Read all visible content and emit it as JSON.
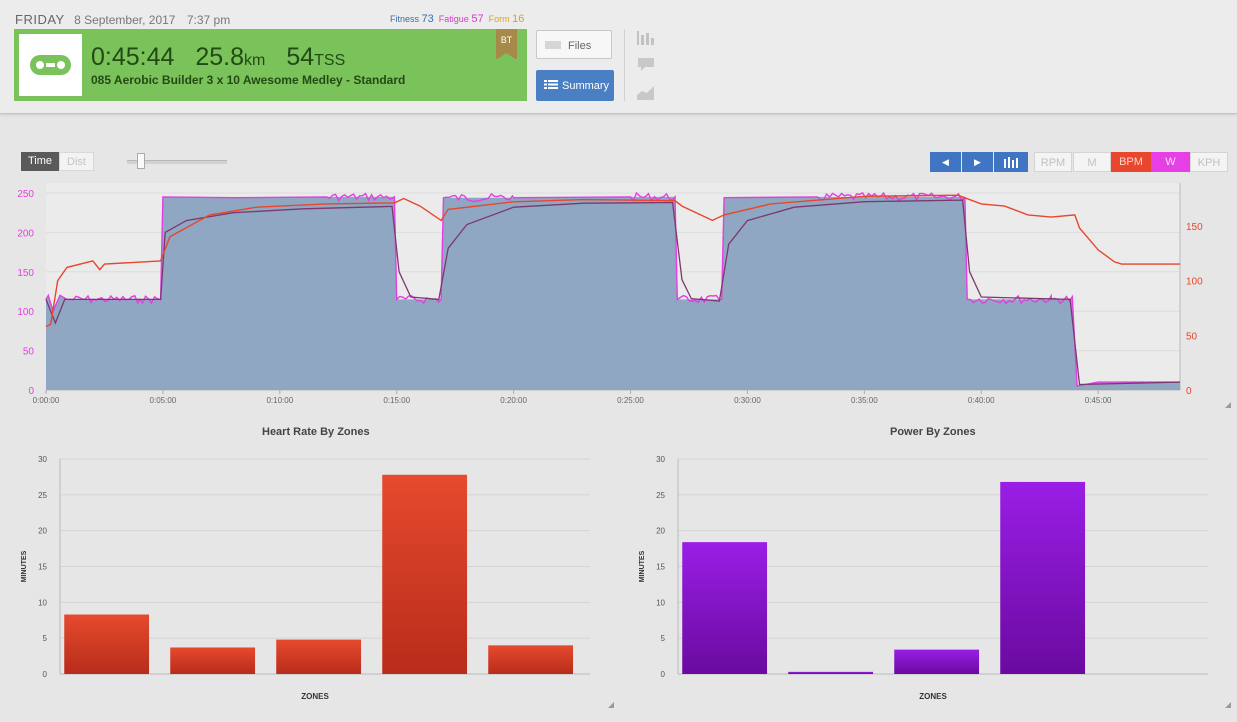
{
  "header": {
    "day": "FRIDAY",
    "date": "8 September, 2017",
    "time": "7:37 pm",
    "fitness_label": "Fitness",
    "fitness_value": "73",
    "fatigue_label": "Fatigue",
    "fatigue_value": "57",
    "form_label": "Form",
    "form_value": "16"
  },
  "workout": {
    "duration": "0:45:44",
    "distance": "25.8",
    "distance_unit": "km",
    "tss": "54",
    "tss_unit": "TSS",
    "title": "085 Aerobic Builder 3 x 10 Awesome Medley - Standard",
    "badge": "BT",
    "icon": "bike-chain-icon",
    "card_color": "#7ac25a"
  },
  "buttons": {
    "files": "Files",
    "summary": "Summary"
  },
  "side_icons": [
    "bar-chart-icon",
    "comment-icon",
    "area-chart-icon"
  ],
  "controls": {
    "toggle_time": "Time",
    "toggle_dist": "Dist",
    "zoom_level": 0.1,
    "nav": [
      "prev-arrow-icon",
      "next-arrow-icon",
      "bars-icon"
    ],
    "channels": [
      "RPM",
      "M",
      "BPM",
      "W",
      "KPH"
    ],
    "active_channels": [
      "BPM",
      "W"
    ]
  },
  "colors": {
    "power": "#e23fe2",
    "power_fill": "#8aa3c0",
    "heart_rate": "#e8462d",
    "hr_bar": "#e04a2c",
    "power_bar": "#8a12d6",
    "accent_blue": "#3f75c3"
  },
  "chart_data": [
    {
      "type": "line",
      "x": [
        "0:00:00",
        "0:05:00",
        "0:10:00",
        "0:15:00",
        "0:20:00",
        "0:25:00",
        "0:30:00",
        "0:35:00",
        "0:40:00",
        "0:45:00"
      ],
      "y_left_ticks": [
        "0",
        "50",
        "100",
        "150",
        "200",
        "250"
      ],
      "y_right_ticks": [
        "0",
        "50",
        "100",
        "150"
      ],
      "ylim_left": [
        0,
        250
      ],
      "ylim_right": [
        0,
        180
      ],
      "xlim_minutes": [
        0,
        48.5
      ],
      "series": [
        {
          "axis": "left",
          "points": [
            [
              0,
              115
            ],
            [
              0.1,
              120
            ],
            [
              0.3,
              100
            ],
            [
              0.6,
              120
            ],
            [
              0.9,
              115
            ],
            [
              2,
              115
            ],
            [
              4,
              115
            ],
            [
              4.9,
              115
            ],
            [
              5.0,
              245
            ],
            [
              8,
              244
            ],
            [
              12,
              245
            ],
            [
              14.9,
              245
            ],
            [
              15.0,
              115
            ],
            [
              16.9,
              115
            ],
            [
              17.0,
              244
            ],
            [
              20,
              244
            ],
            [
              25,
              245
            ],
            [
              26.9,
              245
            ],
            [
              27.0,
              115
            ],
            [
              28.9,
              115
            ],
            [
              29.0,
              244
            ],
            [
              33,
              245
            ],
            [
              38,
              245
            ],
            [
              39.3,
              245
            ],
            [
              39.4,
              115
            ],
            [
              43,
              115
            ],
            [
              43.9,
              115
            ],
            [
              44.1,
              5
            ],
            [
              45,
              10
            ],
            [
              48.5,
              10
            ]
          ]
        },
        {
          "axis": "left",
          "points": [
            [
              0,
              115
            ],
            [
              0.2,
              100
            ],
            [
              0.4,
              85
            ],
            [
              0.8,
              115
            ],
            [
              2,
              115
            ],
            [
              4.9,
              115
            ],
            [
              5.1,
              200
            ],
            [
              6,
              215
            ],
            [
              8,
              225
            ],
            [
              11,
              230
            ],
            [
              14.8,
              233
            ],
            [
              15.1,
              150
            ],
            [
              15.6,
              118
            ],
            [
              16.8,
              115
            ],
            [
              17.2,
              180
            ],
            [
              18,
              210
            ],
            [
              20,
              232
            ],
            [
              23,
              237
            ],
            [
              26.8,
              238
            ],
            [
              27.2,
              140
            ],
            [
              27.6,
              116
            ],
            [
              28.8,
              113
            ],
            [
              29.2,
              185
            ],
            [
              30,
              215
            ],
            [
              32,
              232
            ],
            [
              35,
              239
            ],
            [
              39.2,
              241
            ],
            [
              39.5,
              150
            ],
            [
              40,
              118
            ],
            [
              43.8,
              115
            ],
            [
              44.2,
              7
            ],
            [
              48.5,
              10
            ]
          ]
        },
        {
          "axis": "right",
          "points": [
            [
              0,
              58
            ],
            [
              0.2,
              60
            ],
            [
              0.5,
              100
            ],
            [
              0.9,
              112
            ],
            [
              2,
              118
            ],
            [
              2.3,
              110
            ],
            [
              2.5,
              115
            ],
            [
              4.9,
              118
            ],
            [
              5.3,
              140
            ],
            [
              7,
              160
            ],
            [
              9,
              167
            ],
            [
              12,
              170
            ],
            [
              14.9,
              171
            ],
            [
              15.3,
              175
            ],
            [
              16,
              168
            ],
            [
              16.9,
              155
            ],
            [
              17.2,
              165
            ],
            [
              20,
              172
            ],
            [
              23,
              174
            ],
            [
              26.9,
              173
            ],
            [
              27.2,
              168
            ],
            [
              28.5,
              155
            ],
            [
              29.0,
              160
            ],
            [
              31,
              170
            ],
            [
              35,
              177
            ],
            [
              39,
              178
            ],
            [
              40,
              170
            ],
            [
              41,
              168
            ],
            [
              42,
              160
            ],
            [
              43,
              158
            ],
            [
              44,
              160
            ],
            [
              44.2,
              148
            ],
            [
              45,
              128
            ],
            [
              45.7,
              117
            ],
            [
              46,
              115
            ],
            [
              48.5,
              115
            ]
          ]
        }
      ]
    },
    {
      "type": "bar",
      "title": "Heart Rate By Zones",
      "xlabel": "ZONES",
      "ylabel": "MINUTES",
      "ylim": [
        0,
        30
      ],
      "yticks": [
        "0",
        "5",
        "10",
        "15",
        "20",
        "25",
        "30"
      ],
      "values": [
        8.3,
        3.7,
        4.8,
        27.8,
        4.0
      ]
    },
    {
      "type": "bar",
      "title": "Power By Zones",
      "xlabel": "ZONES",
      "ylabel": "MINUTES",
      "ylim": [
        0,
        30
      ],
      "yticks": [
        "0",
        "5",
        "10",
        "15",
        "20",
        "25",
        "30"
      ],
      "values": [
        18.4,
        0.3,
        3.4,
        26.8
      ]
    }
  ]
}
